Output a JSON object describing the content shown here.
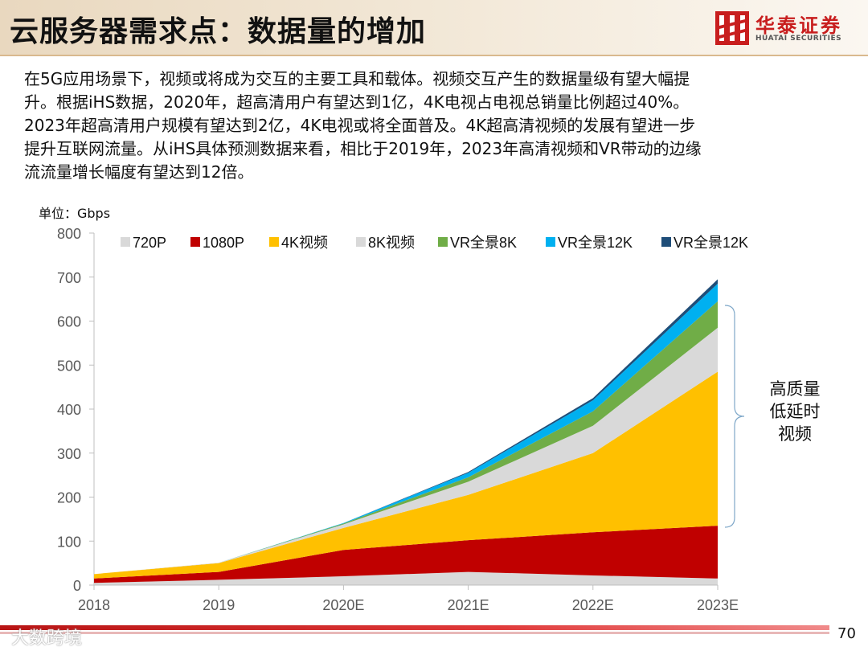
{
  "header": {
    "title": "云服务器需求点：数据量的增加",
    "logo_cn": "华泰证券",
    "logo_en": "HUATAI SECURITIES"
  },
  "body_text": [
    "在5G应用场景下，视频或将成为交互的主要工具和载体。视频交互产生的数据量级有望大幅提",
    "升。根据iHS数据，2020年，超高清用户有望达到1亿，4K电视占电视总销量比例超过40%。",
    "2023年超高清用户规模有望达到2亿，4K电视或将全面普及。4K超高清视频的发展有望进一步",
    "提升互联网流量。从iHS具体预测数据来看，相比于2019年，2023年高清视频和VR带动的边缘",
    "流流量增长幅度有望达到12倍。"
  ],
  "unit_label": "单位：Gbps",
  "annotation": [
    "高质量",
    "低延时",
    "视频"
  ],
  "footer": {
    "page_number": "70",
    "watermark": "大数跨境"
  },
  "colors": {
    "720P": "#d9d9d9",
    "1080P": "#c00000",
    "4K视频": "#ffc000",
    "8K视频": "#d9d9d9",
    "VR全景8K": "#70ad47",
    "VR全景12K_a": "#00b0f0",
    "VR全景12K_b": "#1f4e79"
  },
  "chart_data": {
    "type": "area",
    "stacked": true,
    "categories": [
      "2018",
      "2019",
      "2020E",
      "2021E",
      "2022E",
      "2023E"
    ],
    "ylim": [
      0,
      800
    ],
    "yticks": [
      0,
      100,
      200,
      300,
      400,
      500,
      600,
      700,
      800
    ],
    "legend_position": "top",
    "series": [
      {
        "name": "720P",
        "color": "#d9d9d9",
        "values": [
          5,
          12,
          20,
          30,
          22,
          15
        ]
      },
      {
        "name": "1080P",
        "color": "#c00000",
        "values": [
          10,
          18,
          60,
          72,
          98,
          120
        ]
      },
      {
        "name": "4K视频",
        "color": "#ffc000",
        "values": [
          10,
          20,
          50,
          103,
          180,
          350
        ]
      },
      {
        "name": "8K视频",
        "color": "#d9d9d9",
        "values": [
          0,
          1,
          8,
          30,
          62,
          100
        ]
      },
      {
        "name": "VR全景8K",
        "color": "#70ad47",
        "values": [
          0,
          0,
          2,
          10,
          33,
          60
        ]
      },
      {
        "name": "VR全景12K",
        "color": "#00b0f0",
        "values": [
          0,
          0,
          1,
          10,
          25,
          40
        ]
      },
      {
        "name": "VR全景12K",
        "color": "#1f4e79",
        "values": [
          0,
          0,
          0,
          2,
          5,
          10
        ]
      }
    ]
  }
}
